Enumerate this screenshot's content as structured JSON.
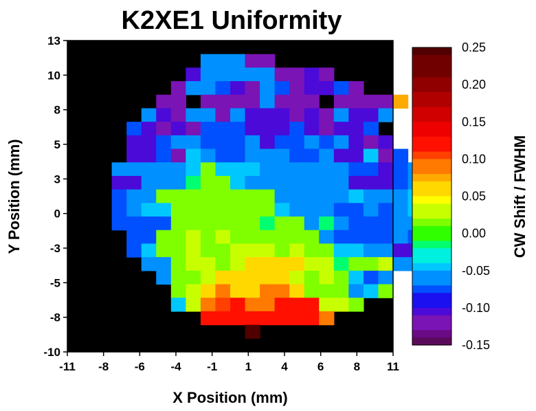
{
  "chart_data": {
    "type": "heatmap",
    "title": "K2XE1 Uniformity",
    "xlabel": "X Position (mm)",
    "ylabel": "Y Position (mm)",
    "colorbar_label": "CW Shift / FWHM",
    "xlim": [
      -11,
      11
    ],
    "ylim": [
      -10,
      13
    ],
    "x_tick_labels": [
      "-11",
      "-8",
      "-6",
      "-4",
      "-1",
      "1",
      "4",
      "6",
      "8",
      "11"
    ],
    "y_tick_labels": [
      "13",
      "10",
      "8",
      "5",
      "3",
      "0",
      "-3",
      "-5",
      "-8",
      "-10"
    ],
    "colorbar_range": [
      -0.15,
      0.25
    ],
    "colorbar_tick_labels": [
      "0.25",
      "0.20",
      "0.15",
      "0.10",
      "0.05",
      "0.00",
      "-0.05",
      "-0.10",
      "-0.15"
    ],
    "background_color": "#000000",
    "cell_size_mm": 1,
    "x_start_mm": -11,
    "y_start_mm": 12,
    "grid_values": [
      ",,,,,,,,,,,,,,,,,,,,,,",
      ",,,,,,,,,ccc55,,,,,,,,,",
      ",,,,,,,,Bccccc55B5,,,,,,,",
      ",,,,,,,5ccbB5cb5BBb5,,,,,,",
      ",,,,,,5545555c55545555G,,,,",
      ",,,,,cB5cc5cBBB5B5cBBc,,,,",
      ",,,,bB5B5bbbBBBbB5BBb,,,,",
      ",,,,BBbccbbbcBbbcbcB5B,,,,",
      ",,,,BBb5acbbcccbbcBBa5b,,,",
      ",,,cccccaMaaaccccccbbBbc,,",
      ",,,BBccclMMacccccccBBBbc,,",
      ",,,bccMMMMMMMMcccccacccac,",
      ",,,bcaaMMMMMMMacccbbcbcaB,",
      ",,,bbbbMMMMMMlMMclcbbbccb,",
      ",,,,bbMMLMLMMMMMMcbbbbcb,,",
      ",,,,baMMLMMLLLMLMMaaccBB,,",
      ",,,,,ccMLLMLYYYYLLlMMLccb,,",
      ",,,,,,cMMLYYYYYLMLMabc,,,",
      ",,,,,,,MLYOYYOOYMMMcaM,,,",
      ",,,,,,,aLOrROORRRLLM,,,,,",
      ",,,,,,,,,RRRRRRRRO,,,,,,",
      ",,,,,,,,,,,,D,,,,,,,,,,"
    ],
    "value_by_code": {
      "D": 0.24,
      "R": 0.13,
      "r": 0.1,
      "O": 0.09,
      "Y": 0.06,
      "L": 0.03,
      "M": 0.01,
      "l": -0.01,
      "a": -0.04,
      "c": -0.06,
      "b": -0.08,
      "B": -0.1,
      "5": -0.12,
      "G": 0.08
    }
  }
}
